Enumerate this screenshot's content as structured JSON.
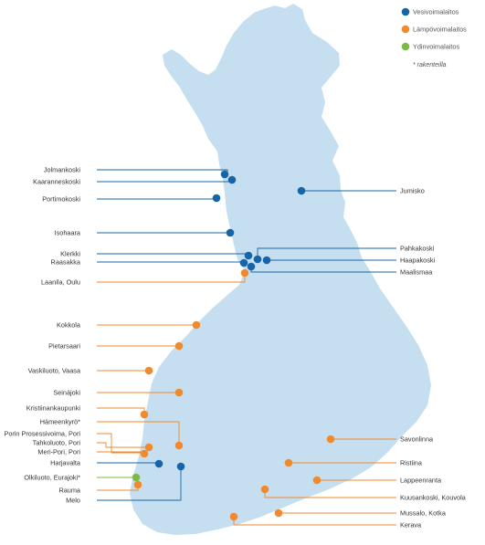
{
  "colors": {
    "land": "#c6dff0",
    "hydro": "#1565a8",
    "thermal": "#f08a2c",
    "nuclear": "#7bbb42",
    "text": "#333333"
  },
  "legend": {
    "items": [
      {
        "label": "Vesivoimalaitos",
        "type": "hydro"
      },
      {
        "label": "Lämpövoimalaitos",
        "type": "thermal"
      },
      {
        "label": "Ydinvoimalaitos",
        "type": "nuclear"
      }
    ],
    "note": "* rakenteilla"
  },
  "plants": [
    {
      "label": "Jolmankoski",
      "type": "hydro",
      "side": "left"
    },
    {
      "label": "Kaaranneskoski",
      "type": "hydro",
      "side": "left"
    },
    {
      "label": "Portimokoski",
      "type": "hydro",
      "side": "left"
    },
    {
      "label": "Jumisko",
      "type": "hydro",
      "side": "right"
    },
    {
      "label": "Isohaara",
      "type": "hydro",
      "side": "left"
    },
    {
      "label": "Pahkakoski",
      "type": "hydro",
      "side": "right"
    },
    {
      "label": "Klerkki",
      "type": "hydro",
      "side": "left"
    },
    {
      "label": "Haapakoski",
      "type": "hydro",
      "side": "right"
    },
    {
      "label": "Raasakka",
      "type": "hydro",
      "side": "left"
    },
    {
      "label": "Maalismaa",
      "type": "hydro",
      "side": "right"
    },
    {
      "label": "Laanila, Oulu",
      "type": "thermal",
      "side": "left"
    },
    {
      "label": "Kokkola",
      "type": "thermal",
      "side": "left"
    },
    {
      "label": "Pietarsaari",
      "type": "thermal",
      "side": "left"
    },
    {
      "label": "Vaskiluoto, Vaasa",
      "type": "thermal",
      "side": "left"
    },
    {
      "label": "Seinäjoki",
      "type": "thermal",
      "side": "left"
    },
    {
      "label": "Kristiinankaupunki",
      "type": "thermal",
      "side": "left"
    },
    {
      "label": "Hämeenkyrö*",
      "type": "thermal",
      "side": "left"
    },
    {
      "label": "Porin Prosessivoima, Pori",
      "type": "thermal",
      "side": "left"
    },
    {
      "label": "Tahkoluoto, Pori",
      "type": "thermal",
      "side": "left"
    },
    {
      "label": "Meri-Pori, Pori",
      "type": "thermal",
      "side": "left"
    },
    {
      "label": "Harjavalta",
      "type": "hydro",
      "side": "left"
    },
    {
      "label": "Olkiluoto, Eurajoki*",
      "type": "nuclear",
      "side": "left"
    },
    {
      "label": "Rauma",
      "type": "thermal",
      "side": "left"
    },
    {
      "label": "Melo",
      "type": "hydro",
      "side": "left"
    },
    {
      "label": "Savonlinna",
      "type": "thermal",
      "side": "right"
    },
    {
      "label": "Ristiina",
      "type": "thermal",
      "side": "right"
    },
    {
      "label": "Lappeenranta",
      "type": "thermal",
      "side": "right"
    },
    {
      "label": "Kuusankoski, Kouvola",
      "type": "thermal",
      "side": "right"
    },
    {
      "label": "Mussalo, Kotka",
      "type": "thermal",
      "side": "right"
    },
    {
      "label": "Kerava",
      "type": "thermal",
      "side": "right"
    }
  ]
}
